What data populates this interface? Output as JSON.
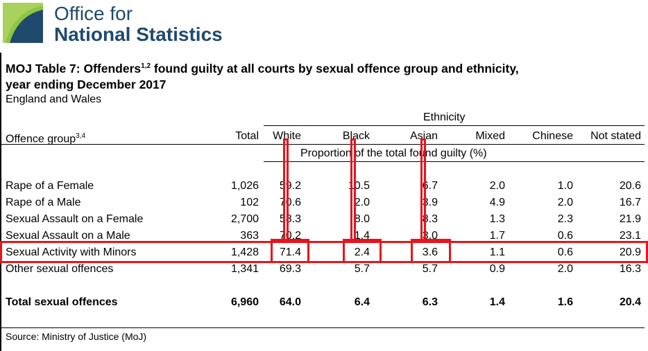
{
  "header": {
    "org_line1": "Office for",
    "org_line2": "National Statistics"
  },
  "table": {
    "title_part1": "MOJ Table 7: Offenders",
    "title_sup": "1,2",
    "title_part2": " found guilty at all courts by sexual offence group and ethnicity,",
    "title_line2": "year ending December 2017",
    "region": "England and Wales",
    "ethnicity_header": "Ethnicity",
    "offence_header": "Offence group",
    "offence_header_sup": "3,4",
    "columns": [
      "Total",
      "White",
      "Black",
      "Asian",
      "Mixed",
      "Chinese",
      "Not stated"
    ],
    "proportion_note": "Proportion of the total found guilty (%)",
    "rows": [
      {
        "label": "Rape of a Female",
        "values": [
          "1,026",
          "59.2",
          "10.5",
          "6.7",
          "2.0",
          "1.0",
          "20.6"
        ]
      },
      {
        "label": "Rape of a Male",
        "values": [
          "102",
          "70.6",
          "2.0",
          "3.9",
          "4.9",
          "2.0",
          "16.7"
        ]
      },
      {
        "label": "Sexual Assault on a Female",
        "values": [
          "2,700",
          "58.3",
          "8.0",
          "8.3",
          "1.3",
          "2.3",
          "21.9"
        ]
      },
      {
        "label": "Sexual Assault on a Male",
        "values": [
          "363",
          "70.2",
          "1.4",
          "3.0",
          "1.7",
          "0.6",
          "23.1"
        ]
      },
      {
        "label": "Sexual Activity with Minors",
        "values": [
          "1,428",
          "71.4",
          "2.4",
          "3.6",
          "1.1",
          "0.6",
          "20.9"
        ]
      },
      {
        "label": "Other sexual offences",
        "values": [
          "1,341",
          "69.3",
          "5.7",
          "5.7",
          "0.9",
          "2.0",
          "16.3"
        ]
      }
    ],
    "total_row": {
      "label": "Total sexual offences",
      "values": [
        "6,960",
        "64.0",
        "6.4",
        "6.3",
        "1.4",
        "1.6",
        "20.4"
      ]
    },
    "source": "Source: Ministry of Justice (MoJ)"
  },
  "colors": {
    "brand": "#1f4a6e",
    "logo_green": "#8dc63f",
    "highlight": "#e8131b"
  }
}
